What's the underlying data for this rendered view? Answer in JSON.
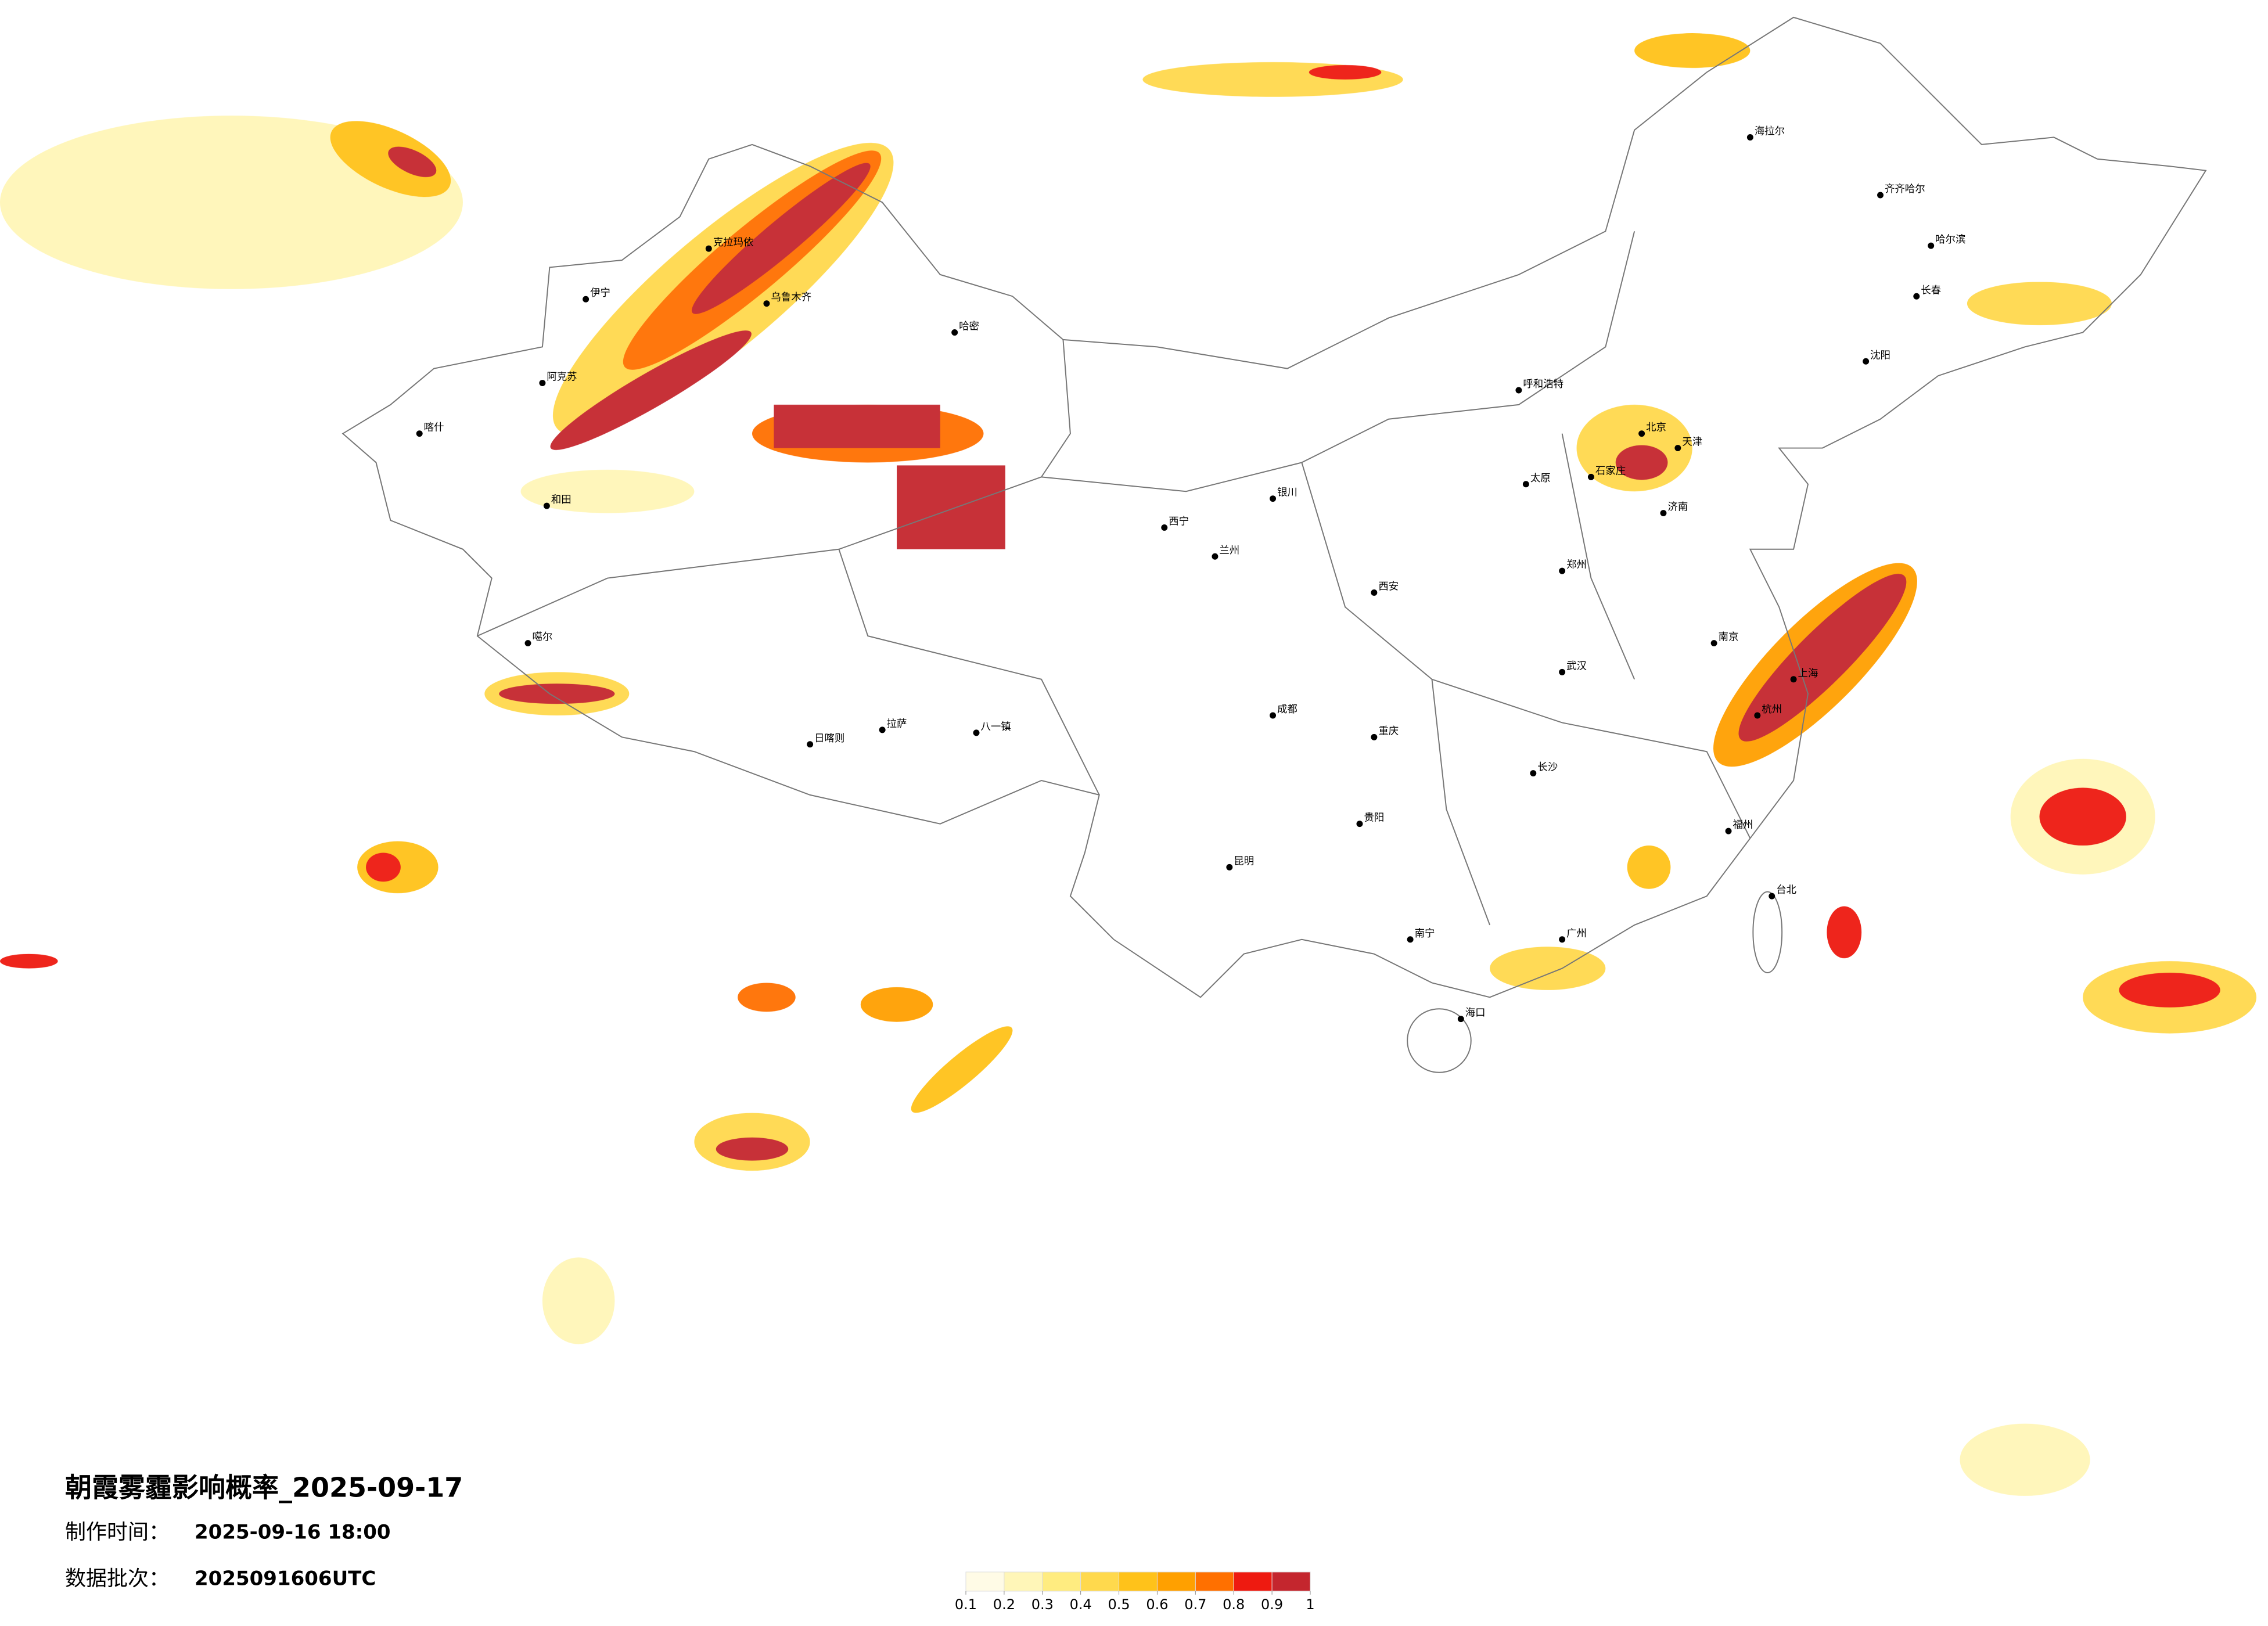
{
  "title": "朝霞雾霾影响概率_2025-09-17",
  "production_time": {
    "label": "制作时间：",
    "value": "2025-09-16 18:00"
  },
  "data_batch": {
    "label": "数据批次：",
    "value": "2025091606UTC"
  },
  "colorbar": {
    "colors": [
      "#fffbe6",
      "#fff6b8",
      "#ffec80",
      "#ffd94d",
      "#ffc21a",
      "#ffa000",
      "#ff7000",
      "#ee1a10",
      "#c4262e"
    ],
    "ticks": [
      0.1,
      0.2,
      0.3,
      0.4,
      0.5,
      0.6,
      0.7,
      0.8,
      0.9,
      1
    ]
  },
  "cities": [
    "克拉玛依",
    "乌鲁木齐",
    "伊宁",
    "阿克苏",
    "喀什",
    "和田",
    "哈密",
    "噶尔",
    "拉萨",
    "日喀则",
    "八一镇",
    "西宁",
    "兰州",
    "银川",
    "呼和浩特",
    "北京",
    "天津",
    "石家庄",
    "太原",
    "济南",
    "郑州",
    "西安",
    "成都",
    "重庆",
    "武汉",
    "南京",
    "上海",
    "杭州",
    "长沙",
    "贵阳",
    "昆明",
    "南宁",
    "广州",
    "福州",
    "海口",
    "哈尔滨",
    "长春",
    "沈阳",
    "齐齐哈尔",
    "海拉尔",
    "台北"
  ]
}
